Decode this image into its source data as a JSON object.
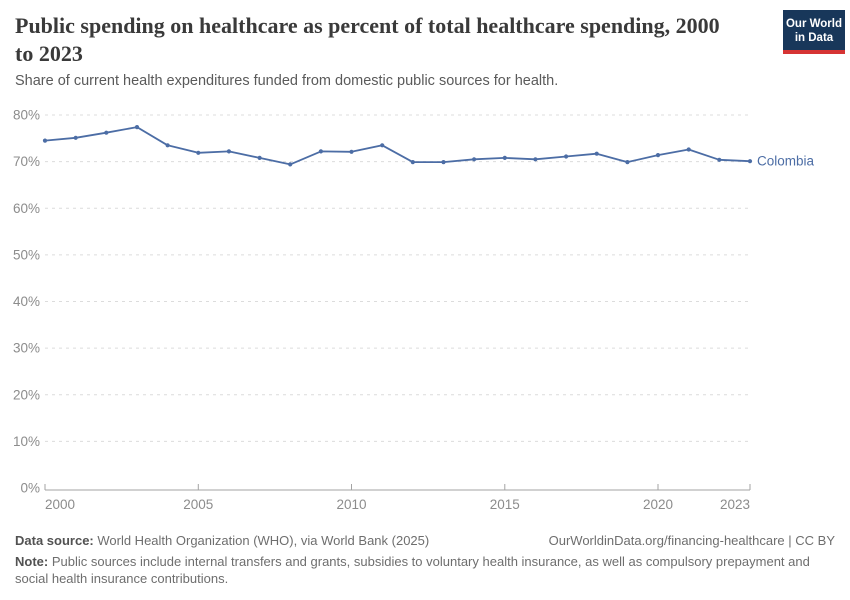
{
  "header": {
    "title": "Public spending on healthcare as percent of total healthcare spending, 2000 to 2023",
    "subtitle": "Share of current health expenditures funded from domestic public sources for health."
  },
  "logo": {
    "line1": "Our World",
    "line2": "in Data",
    "bg_color": "#18375a",
    "accent_color": "#d63434"
  },
  "chart_data": {
    "type": "line",
    "title": "Public spending on healthcare as percent of total healthcare spending, 2000 to 2023",
    "x": [
      2000,
      2001,
      2002,
      2003,
      2004,
      2005,
      2006,
      2007,
      2008,
      2009,
      2010,
      2011,
      2012,
      2013,
      2014,
      2015,
      2016,
      2017,
      2018,
      2019,
      2020,
      2021,
      2022,
      2023
    ],
    "series": [
      {
        "name": "Colombia",
        "color": "#4c6da5",
        "values": [
          74.5,
          75.1,
          76.2,
          77.4,
          73.5,
          71.9,
          72.2,
          70.8,
          69.4,
          72.2,
          72.1,
          73.5,
          69.9,
          69.9,
          70.5,
          70.8,
          70.5,
          71.1,
          71.7,
          69.9,
          71.4,
          72.6,
          70.4,
          70.1
        ]
      }
    ],
    "xlabel": "",
    "ylabel": "",
    "ylim": [
      0,
      80
    ],
    "ytick_step": 10,
    "ytick_suffix": "%",
    "xticks": [
      2000,
      2005,
      2010,
      2015,
      2020,
      2023
    ],
    "grid": "horizontal-dashed",
    "legend_position": "line-end-label"
  },
  "footer": {
    "datasource_label": "Data source:",
    "datasource_text": " World Health Organization (WHO), via World Bank (2025)",
    "link_text": "OurWorldinData.org/financing-healthcare | CC BY",
    "note_label": "Note:",
    "note_text": " Public sources include internal transfers and grants, subsidies to voluntary health insurance, as well as compulsory prepayment and social health insurance contributions."
  },
  "colors": {
    "line": "#4c6da5",
    "title_text": "#3a3a3a",
    "subtitle_text": "#5a5a5a",
    "tick_text": "#8c8c8c",
    "gridline": "#dcdcdc",
    "axis_line": "#a3a3a3",
    "footer_text": "#6e6e6e"
  }
}
